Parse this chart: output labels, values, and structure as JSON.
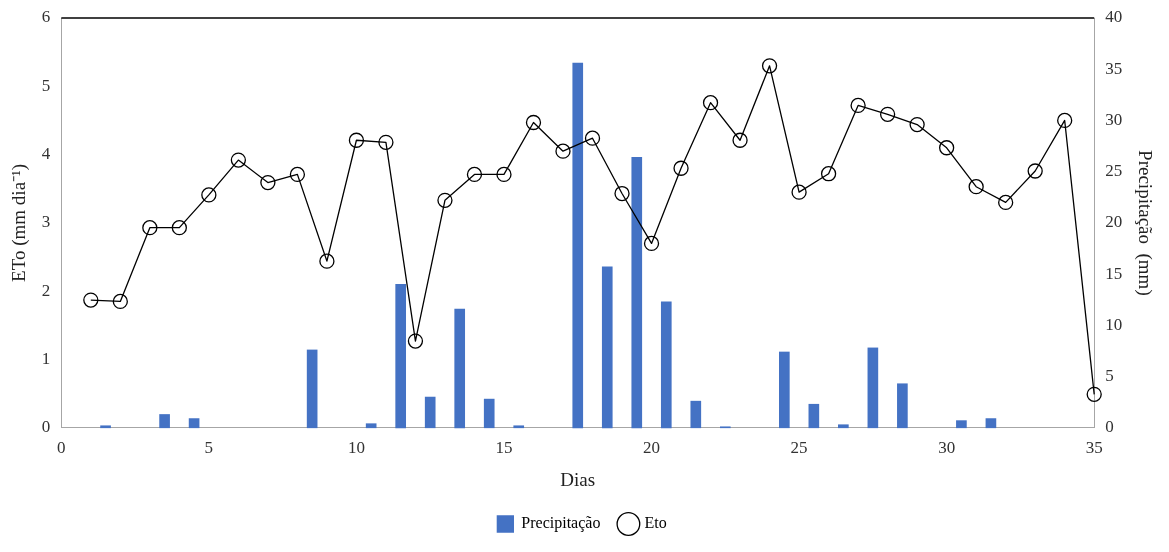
{
  "chart_data": {
    "type": "bar",
    "xlabel": "Dias",
    "ylabel": "ETo (mm dia⁻¹)",
    "y2label": "Precipitação  (mm)",
    "xlim": [
      0,
      35
    ],
    "xticks": [
      0,
      5,
      10,
      15,
      20,
      25,
      30,
      35
    ],
    "ylim": [
      0,
      6
    ],
    "yticks": [
      0,
      1,
      2,
      3,
      4,
      5,
      6
    ],
    "y2lim": [
      0,
      40
    ],
    "y2ticks": [
      0,
      5,
      10,
      15,
      20,
      25,
      30,
      35,
      40
    ],
    "grid": false,
    "legend": "bottom",
    "series": [
      {
        "name": "Precipitação",
        "axis": "y2",
        "color": "#4472c4",
        "x": [
          1.5,
          3.5,
          4.5,
          8.5,
          10.5,
          11.5,
          12.5,
          13.5,
          14.5,
          15.5,
          17.5,
          18.5,
          19.5,
          20.5,
          21.5,
          22.5,
          24.5,
          25.5,
          26.5,
          27.5,
          28.5,
          30.5,
          31.5
        ],
        "values": [
          0.2,
          1.3,
          0.9,
          7.6,
          0.4,
          14.0,
          3.0,
          11.6,
          2.8,
          0.2,
          35.6,
          15.7,
          26.4,
          12.3,
          2.6,
          0.1,
          7.4,
          2.3,
          0.3,
          7.8,
          4.3,
          0.7,
          0.9
        ]
      },
      {
        "name": "Eto",
        "type": "line",
        "axis": "y",
        "color": "#000000",
        "marker": "circle",
        "x": [
          1,
          2,
          3,
          4,
          5,
          6,
          7,
          8,
          9,
          10,
          11,
          12,
          13,
          14,
          15,
          16,
          17,
          18,
          19,
          20,
          21,
          22,
          23,
          24,
          25,
          26,
          27,
          28,
          29,
          30,
          31,
          32,
          33,
          34,
          35
        ],
        "values": [
          1.87,
          1.85,
          2.93,
          2.93,
          3.41,
          3.92,
          3.59,
          3.71,
          2.44,
          4.21,
          4.18,
          1.27,
          3.33,
          3.71,
          3.71,
          4.47,
          4.05,
          4.24,
          3.43,
          2.7,
          3.8,
          4.76,
          4.21,
          5.3,
          3.45,
          3.72,
          4.72,
          4.59,
          4.44,
          4.1,
          3.53,
          3.3,
          3.76,
          4.5,
          0.49
        ]
      }
    ]
  }
}
